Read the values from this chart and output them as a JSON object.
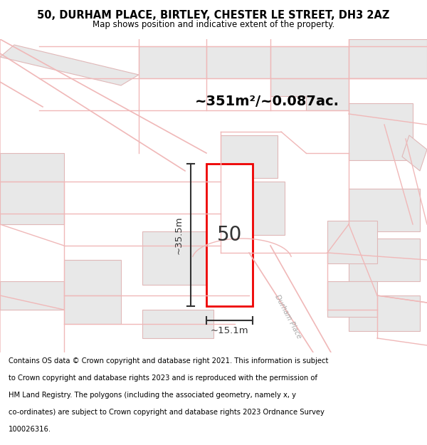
{
  "title": "50, DURHAM PLACE, BIRTLEY, CHESTER LE STREET, DH3 2AZ",
  "subtitle": "Map shows position and indicative extent of the property.",
  "footer_lines": [
    "Contains OS data © Crown copyright and database right 2021. This information is subject",
    "to Crown copyright and database rights 2023 and is reproduced with the permission of",
    "HM Land Registry. The polygons (including the associated geometry, namely x, y",
    "co-ordinates) are subject to Crown copyright and database rights 2023 Ordnance Survey",
    "100026316."
  ],
  "area_label": "~351m²/~0.087ac.",
  "property_number": "50",
  "dim_height": "~35.5m",
  "dim_width": "~15.1m",
  "street_label": "Durham Place",
  "map_bg": "#f5f2f2",
  "road_color": "#f0b8b8",
  "building_fill": "#e8e8e8",
  "building_edge": "#e0b8b8",
  "highlight_color": "#ee0000",
  "line_color": "#333333",
  "title_fontsize": 10.5,
  "subtitle_fontsize": 8.5,
  "footer_fontsize": 7.2,
  "area_fontsize": 14,
  "number_fontsize": 20,
  "dim_fontsize": 9.5
}
